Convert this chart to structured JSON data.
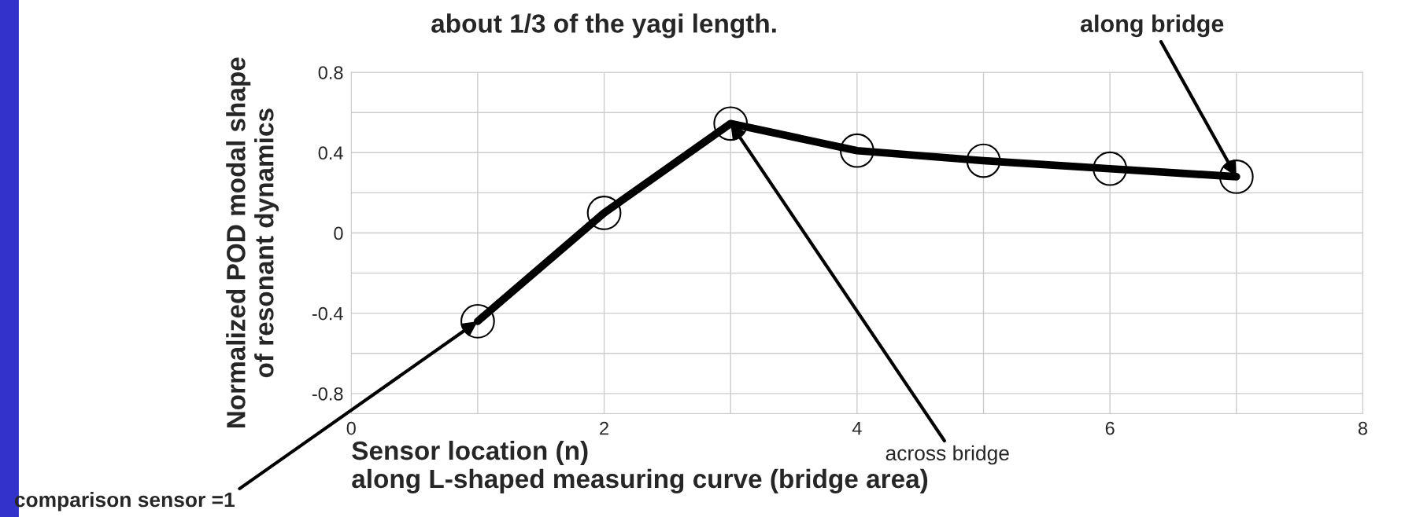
{
  "chart_data": {
    "type": "line",
    "title": "about 1/3 of the yagi length.",
    "xlabel": "Sensor location (n)\nalong L-shaped measuring curve (bridge area)",
    "ylabel": "Normalized POD modal shape\nof resonant dynamics",
    "x": [
      1,
      2,
      3,
      4,
      5,
      6,
      7
    ],
    "series": [
      {
        "color": "#000000",
        "values": [
          -0.44,
          0.1,
          0.545,
          0.41,
          0.36,
          0.32,
          0.28
        ]
      }
    ],
    "marker": "circle",
    "line_style": "solid",
    "grid": true,
    "legend": false,
    "xlim": [
      0,
      8
    ],
    "ylim": [
      -0.9,
      0.8
    ],
    "xticks": [
      0,
      {
        "value": 1,
        "label": null
      },
      2,
      {
        "value": 3,
        "label": null
      },
      4,
      {
        "value": 5,
        "label": null
      },
      6,
      {
        "value": 7,
        "label": null
      },
      8
    ],
    "yticks": [
      -0.8,
      {
        "value": -0.6,
        "label": null
      },
      -0.4,
      {
        "value": -0.2,
        "label": null
      },
      0,
      {
        "value": 0.2,
        "label": null
      },
      0.4,
      {
        "value": 0.6,
        "label": null
      },
      0.8
    ],
    "annotations": [
      {
        "text": "along bridge",
        "x": 7,
        "y": 0.28
      },
      {
        "text": "across bridge",
        "x": 3,
        "y": 0.545
      },
      {
        "text": "comparison sensor =1",
        "x": 1,
        "y": -0.44
      }
    ]
  }
}
